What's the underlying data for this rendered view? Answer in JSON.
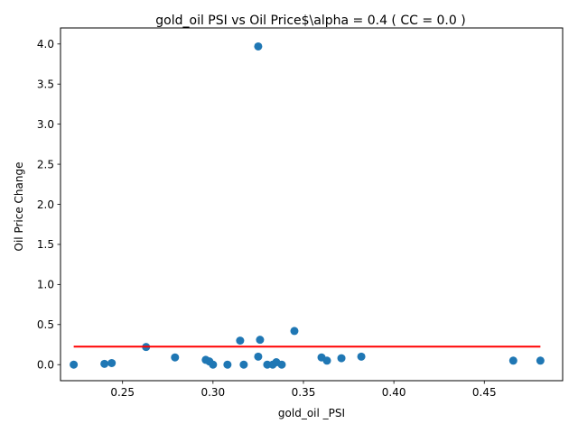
{
  "chart_data": {
    "type": "scatter",
    "title": "gold_oil  PSI vs Oil Price$\\alpha = 0.4 ( CC = 0.0 )",
    "xlabel": "gold_oil _PSI",
    "ylabel": "Oil Price Change",
    "xlim": [
      0.2157,
      0.4933
    ],
    "ylim": [
      -0.2,
      4.2
    ],
    "xticks": [
      0.25,
      0.3,
      0.35,
      0.4,
      0.45
    ],
    "xtick_labels": [
      "0.25",
      "0.30",
      "0.35",
      "0.40",
      "0.45"
    ],
    "yticks": [
      0.0,
      0.5,
      1.0,
      1.5,
      2.0,
      2.5,
      3.0,
      3.5,
      4.0
    ],
    "ytick_labels": [
      "0.0",
      "0.5",
      "1.0",
      "1.5",
      "2.0",
      "2.5",
      "3.0",
      "3.5",
      "4.0"
    ],
    "grid": false,
    "points": [
      {
        "x": 0.223,
        "y": 0.0
      },
      {
        "x": 0.24,
        "y": 0.01
      },
      {
        "x": 0.244,
        "y": 0.02
      },
      {
        "x": 0.263,
        "y": 0.22
      },
      {
        "x": 0.279,
        "y": 0.09
      },
      {
        "x": 0.296,
        "y": 0.06
      },
      {
        "x": 0.298,
        "y": 0.04
      },
      {
        "x": 0.3,
        "y": 0.0
      },
      {
        "x": 0.308,
        "y": 0.0
      },
      {
        "x": 0.315,
        "y": 0.3
      },
      {
        "x": 0.317,
        "y": 0.0
      },
      {
        "x": 0.325,
        "y": 3.97
      },
      {
        "x": 0.325,
        "y": 0.1
      },
      {
        "x": 0.326,
        "y": 0.31
      },
      {
        "x": 0.33,
        "y": 0.0
      },
      {
        "x": 0.333,
        "y": 0.0
      },
      {
        "x": 0.335,
        "y": 0.03
      },
      {
        "x": 0.338,
        "y": 0.0
      },
      {
        "x": 0.345,
        "y": 0.42
      },
      {
        "x": 0.36,
        "y": 0.09
      },
      {
        "x": 0.363,
        "y": 0.05
      },
      {
        "x": 0.371,
        "y": 0.08
      },
      {
        "x": 0.382,
        "y": 0.1
      },
      {
        "x": 0.466,
        "y": 0.05
      },
      {
        "x": 0.481,
        "y": 0.05
      }
    ],
    "fit_line": {
      "x": [
        0.223,
        0.481
      ],
      "y": [
        0.225,
        0.225
      ]
    },
    "colors": {
      "points": "#1f77b4",
      "fit_line": "#ff0000"
    }
  }
}
